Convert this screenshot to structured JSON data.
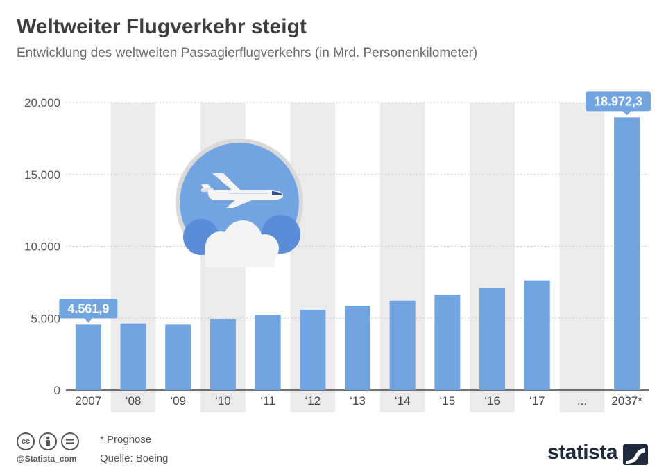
{
  "header": {
    "title": "Weltweiter Flugverkehr steigt",
    "subtitle": "Entwicklung des weltweiten Passagierflugverkehrs (in Mrd. Personenkilometer)"
  },
  "chart_data": {
    "type": "bar",
    "categories": [
      "2007",
      "‘08",
      "‘09",
      "‘10",
      "‘11",
      "‘12",
      "‘13",
      "‘14",
      "‘15",
      "‘16",
      "‘17",
      "...",
      "2037*"
    ],
    "values": [
      4561.9,
      4640,
      4560,
      4940,
      5250,
      5590,
      5880,
      6230,
      6650,
      7090,
      7630,
      null,
      18972.3
    ],
    "data_labels": [
      {
        "index": 0,
        "text": "4.561,9"
      },
      {
        "index": 12,
        "text": "18.972,3"
      }
    ],
    "y_ticks": [
      "0",
      "5.000",
      "10.000",
      "15.000",
      "20.000"
    ],
    "y_tick_values": [
      0,
      5000,
      10000,
      15000,
      20000
    ],
    "ylim": [
      0,
      20000
    ],
    "grid": true,
    "bar_color": "#73a4e2",
    "band_color": "#ebebeb",
    "label_box_color": "#73a4e2"
  },
  "illustration": {
    "icon": "airplane-icon",
    "cloud": "cloud-icon",
    "circle_color": "#73a4e2"
  },
  "footer": {
    "note": "* Prognose",
    "source": "Quelle: Boeing",
    "handle": "@Statista_com",
    "brand": "statista",
    "license_icons": [
      "cc-icon",
      "by-icon",
      "nd-icon"
    ]
  }
}
